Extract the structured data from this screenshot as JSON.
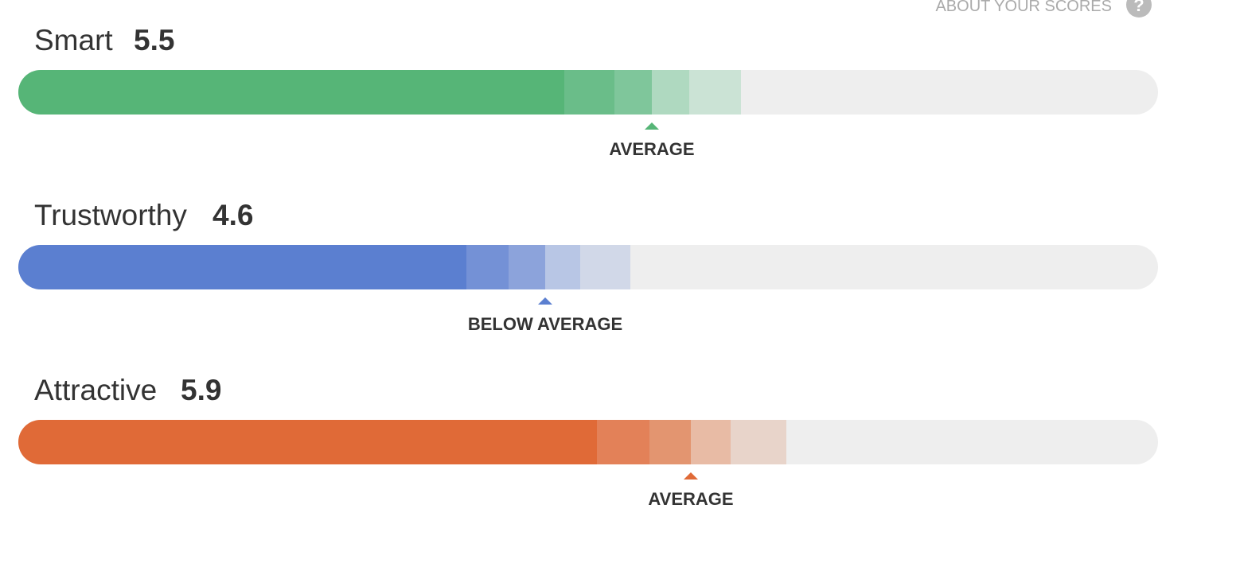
{
  "header": {
    "link": "ABOUT YOUR SCORES",
    "help_icon": "?"
  },
  "scores": [
    {
      "name": "Smart",
      "score": "5.5",
      "label": "AVERAGE"
    },
    {
      "name": "Trustworthy",
      "score": "4.6",
      "label": "BELOW AVERAGE"
    },
    {
      "name": "Attractive",
      "score": "5.9",
      "label": "AVERAGE"
    }
  ]
}
